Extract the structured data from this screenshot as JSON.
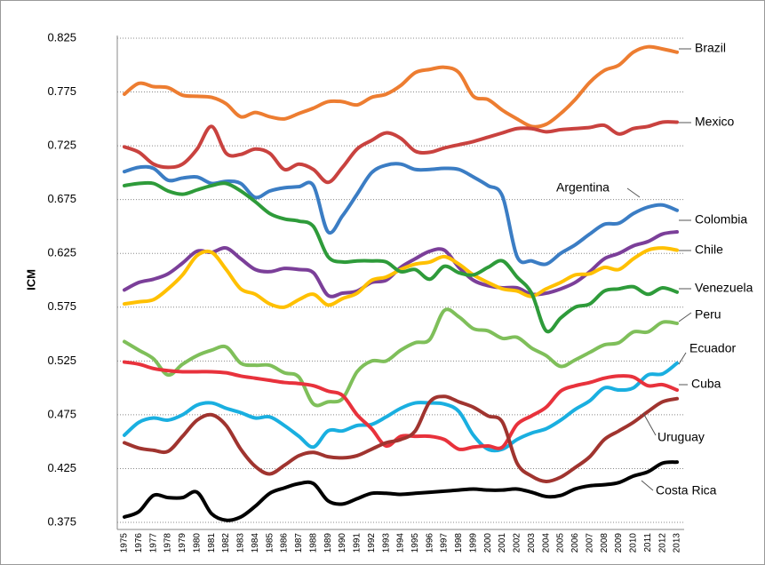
{
  "chart_data": {
    "type": "line",
    "y_label": "ICM",
    "categories": [
      "1975",
      "1976",
      "1977",
      "1978",
      "1979",
      "1980",
      "1981",
      "1982",
      "1983",
      "1984",
      "1985",
      "1986",
      "1987",
      "1988",
      "1989",
      "1990",
      "1991",
      "1992",
      "1993",
      "1994",
      "1995",
      "1996",
      "1997",
      "1998",
      "1999",
      "2000",
      "2001",
      "2002",
      "2003",
      "2004",
      "2005",
      "2006",
      "2007",
      "2008",
      "2009",
      "2010",
      "2011",
      "2012",
      "2013"
    ],
    "ylim": [
      0.375,
      0.825
    ],
    "yticks": [
      0.375,
      0.425,
      0.475,
      0.525,
      0.575,
      0.625,
      0.675,
      0.725,
      0.775,
      0.825
    ],
    "grid": true,
    "series": [
      {
        "name": "Brazil",
        "color": "#ED7D31",
        "values": [
          0.773,
          0.783,
          0.78,
          0.779,
          0.772,
          0.771,
          0.77,
          0.764,
          0.752,
          0.756,
          0.752,
          0.75,
          0.755,
          0.76,
          0.766,
          0.766,
          0.763,
          0.77,
          0.773,
          0.781,
          0.793,
          0.796,
          0.798,
          0.793,
          0.771,
          0.768,
          0.758,
          0.75,
          0.743,
          0.745,
          0.755,
          0.768,
          0.784,
          0.795,
          0.8,
          0.812,
          0.817,
          0.815,
          0.812
        ]
      },
      {
        "name": "Mexico",
        "color": "#C9423F",
        "values": [
          0.724,
          0.719,
          0.708,
          0.705,
          0.708,
          0.722,
          0.743,
          0.718,
          0.717,
          0.722,
          0.718,
          0.703,
          0.708,
          0.703,
          0.691,
          0.705,
          0.722,
          0.73,
          0.737,
          0.732,
          0.72,
          0.719,
          0.723,
          0.726,
          0.729,
          0.733,
          0.737,
          0.741,
          0.741,
          0.738,
          0.74,
          0.741,
          0.742,
          0.744,
          0.736,
          0.741,
          0.743,
          0.747,
          0.747
        ]
      },
      {
        "name": "Argentina",
        "color": "#3B7DC4",
        "values": [
          0.701,
          0.705,
          0.704,
          0.693,
          0.695,
          0.696,
          0.69,
          0.692,
          0.69,
          0.677,
          0.683,
          0.686,
          0.687,
          0.688,
          0.645,
          0.66,
          0.68,
          0.7,
          0.707,
          0.708,
          0.703,
          0.703,
          0.704,
          0.703,
          0.696,
          0.688,
          0.678,
          0.622,
          0.618,
          0.615,
          0.625,
          0.633,
          0.643,
          0.652,
          0.653,
          0.662,
          0.668,
          0.67,
          0.665
        ]
      },
      {
        "name": "Colombia",
        "color": "#7B3F99",
        "values": [
          0.591,
          0.598,
          0.601,
          0.606,
          0.616,
          0.627,
          0.626,
          0.63,
          0.62,
          0.61,
          0.608,
          0.611,
          0.61,
          0.607,
          0.586,
          0.588,
          0.59,
          0.598,
          0.6,
          0.612,
          0.62,
          0.627,
          0.628,
          0.612,
          0.6,
          0.595,
          0.593,
          0.593,
          0.587,
          0.588,
          0.592,
          0.598,
          0.608,
          0.62,
          0.625,
          0.632,
          0.636,
          0.643,
          0.645
        ]
      },
      {
        "name": "Chile",
        "color": "#FFC000",
        "values": [
          0.578,
          0.58,
          0.582,
          0.592,
          0.605,
          0.623,
          0.626,
          0.61,
          0.592,
          0.587,
          0.578,
          0.575,
          0.582,
          0.587,
          0.577,
          0.583,
          0.588,
          0.6,
          0.603,
          0.61,
          0.615,
          0.617,
          0.622,
          0.615,
          0.605,
          0.598,
          0.592,
          0.59,
          0.585,
          0.592,
          0.598,
          0.605,
          0.606,
          0.612,
          0.61,
          0.62,
          0.628,
          0.63,
          0.628
        ]
      },
      {
        "name": "Venezuela",
        "color": "#2E9B3A",
        "values": [
          0.688,
          0.69,
          0.69,
          0.683,
          0.68,
          0.684,
          0.688,
          0.69,
          0.683,
          0.673,
          0.662,
          0.657,
          0.655,
          0.65,
          0.622,
          0.617,
          0.618,
          0.618,
          0.617,
          0.608,
          0.61,
          0.601,
          0.613,
          0.607,
          0.605,
          0.612,
          0.618,
          0.603,
          0.588,
          0.553,
          0.565,
          0.575,
          0.578,
          0.59,
          0.592,
          0.594,
          0.587,
          0.593,
          0.589
        ]
      },
      {
        "name": "Peru",
        "color": "#7FBF5A",
        "values": [
          0.543,
          0.535,
          0.527,
          0.512,
          0.522,
          0.53,
          0.535,
          0.538,
          0.523,
          0.521,
          0.521,
          0.514,
          0.51,
          0.485,
          0.487,
          0.49,
          0.515,
          0.525,
          0.525,
          0.535,
          0.542,
          0.545,
          0.572,
          0.566,
          0.555,
          0.553,
          0.546,
          0.547,
          0.537,
          0.53,
          0.52,
          0.526,
          0.533,
          0.54,
          0.542,
          0.552,
          0.552,
          0.561,
          0.56
        ]
      },
      {
        "name": "Ecuador",
        "color": "#1AAFE0",
        "values": [
          0.456,
          0.468,
          0.472,
          0.47,
          0.475,
          0.484,
          0.486,
          0.481,
          0.477,
          0.472,
          0.473,
          0.465,
          0.455,
          0.445,
          0.46,
          0.46,
          0.465,
          0.466,
          0.473,
          0.481,
          0.486,
          0.486,
          0.485,
          0.478,
          0.456,
          0.443,
          0.443,
          0.452,
          0.458,
          0.462,
          0.47,
          0.48,
          0.488,
          0.5,
          0.498,
          0.5,
          0.512,
          0.513,
          0.523
        ]
      },
      {
        "name": "Cuba",
        "color": "#E8323C",
        "values": [
          0.524,
          0.522,
          0.518,
          0.516,
          0.515,
          0.515,
          0.515,
          0.514,
          0.511,
          0.509,
          0.507,
          0.505,
          0.504,
          0.502,
          0.497,
          0.493,
          0.475,
          0.462,
          0.446,
          0.455,
          0.455,
          0.455,
          0.452,
          0.443,
          0.445,
          0.446,
          0.445,
          0.466,
          0.474,
          0.482,
          0.497,
          0.502,
          0.505,
          0.509,
          0.511,
          0.51,
          0.502,
          0.503,
          0.498
        ]
      },
      {
        "name": "Uruguay",
        "color": "#A0342F",
        "values": [
          0.449,
          0.444,
          0.442,
          0.441,
          0.455,
          0.47,
          0.475,
          0.465,
          0.443,
          0.427,
          0.42,
          0.428,
          0.437,
          0.44,
          0.436,
          0.435,
          0.437,
          0.443,
          0.449,
          0.452,
          0.46,
          0.487,
          0.492,
          0.487,
          0.482,
          0.474,
          0.468,
          0.43,
          0.418,
          0.413,
          0.417,
          0.426,
          0.436,
          0.452,
          0.46,
          0.468,
          0.478,
          0.487,
          0.49
        ]
      },
      {
        "name": "Costa Rica",
        "color": "#000000",
        "values": [
          0.38,
          0.385,
          0.4,
          0.398,
          0.398,
          0.403,
          0.383,
          0.377,
          0.38,
          0.39,
          0.402,
          0.407,
          0.411,
          0.411,
          0.395,
          0.392,
          0.397,
          0.402,
          0.402,
          0.401,
          0.402,
          0.403,
          0.404,
          0.405,
          0.406,
          0.405,
          0.405,
          0.406,
          0.403,
          0.399,
          0.4,
          0.406,
          0.409,
          0.41,
          0.412,
          0.418,
          0.422,
          0.43,
          0.431
        ]
      }
    ]
  }
}
